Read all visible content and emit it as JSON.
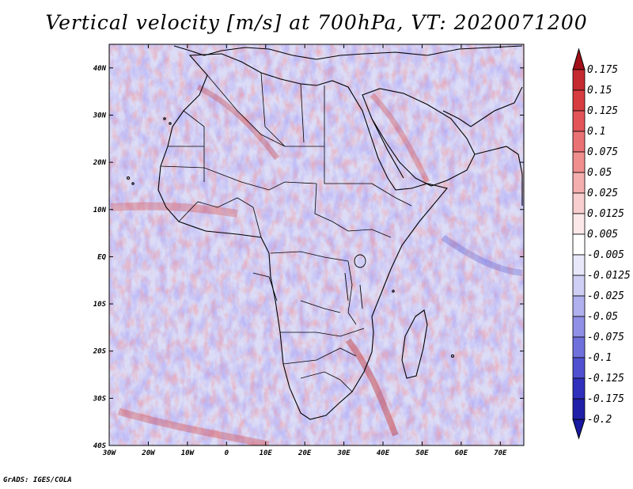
{
  "title": "Vertical velocity [m/s] at 700hPa, VT: 2020071200",
  "footer": "GrADS: IGES/COLA",
  "map": {
    "lon_min": -30,
    "lon_max": 76,
    "lat_min": -40,
    "lat_max": 45,
    "lat_ticks": [
      {
        "value": 40,
        "label": "40N"
      },
      {
        "value": 30,
        "label": "30N"
      },
      {
        "value": 20,
        "label": "20N"
      },
      {
        "value": 10,
        "label": "10N"
      },
      {
        "value": 0,
        "label": "EQ"
      },
      {
        "value": -10,
        "label": "10S"
      },
      {
        "value": -20,
        "label": "20S"
      },
      {
        "value": -30,
        "label": "30S"
      },
      {
        "value": -40,
        "label": "40S"
      }
    ],
    "lon_ticks": [
      {
        "value": -30,
        "label": "30W"
      },
      {
        "value": -20,
        "label": "20W"
      },
      {
        "value": -10,
        "label": "10W"
      },
      {
        "value": 0,
        "label": "0"
      },
      {
        "value": 10,
        "label": "10E"
      },
      {
        "value": 20,
        "label": "20E"
      },
      {
        "value": 30,
        "label": "30E"
      },
      {
        "value": 40,
        "label": "40E"
      },
      {
        "value": 50,
        "label": "50E"
      },
      {
        "value": 60,
        "label": "60E"
      },
      {
        "value": 70,
        "label": "70E"
      }
    ]
  },
  "colorbar": {
    "levels": [
      {
        "label": "0.175",
        "color": "#b01820"
      },
      {
        "label": "0.15",
        "color": "#c42a30"
      },
      {
        "label": "0.125",
        "color": "#d63c40"
      },
      {
        "label": "0.1",
        "color": "#e25458"
      },
      {
        "label": "0.075",
        "color": "#ea7274"
      },
      {
        "label": "0.05",
        "color": "#f08e8e"
      },
      {
        "label": "0.025",
        "color": "#f5aeae"
      },
      {
        "label": "0.0125",
        "color": "#f9cece"
      },
      {
        "label": "0.005",
        "color": "#fce8e8"
      },
      {
        "label": "-0.005",
        "color": "#ffffff"
      },
      {
        "label": "-0.0125",
        "color": "#e8e8fa"
      },
      {
        "label": "-0.025",
        "color": "#cfcff5"
      },
      {
        "label": "-0.05",
        "color": "#b0b0ee"
      },
      {
        "label": "-0.075",
        "color": "#9090e6"
      },
      {
        "label": "-0.1",
        "color": "#7070dc"
      },
      {
        "label": "-0.125",
        "color": "#5050d0"
      },
      {
        "label": "-0.175",
        "color": "#3030bc"
      },
      {
        "label": "-0.2",
        "color": "#2020a8"
      }
    ],
    "top_arrow_color": "#a01018",
    "bottom_arrow_color": "#1818a0"
  }
}
